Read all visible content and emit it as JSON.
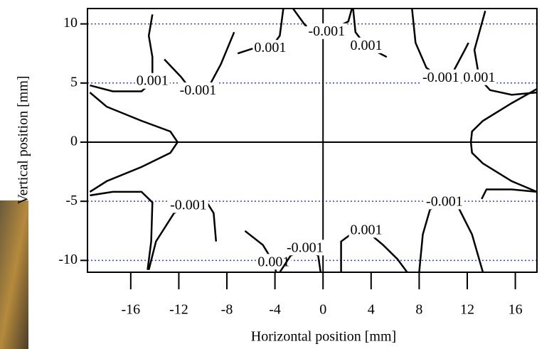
{
  "chart_data": {
    "type": "contour",
    "color": "#000000",
    "grid": true,
    "grid_color": "#3344dd",
    "xlabel": "Horizontal position [mm]",
    "ylabel": "Vertical position [mm]",
    "xlim": [
      -19.6,
      17.8
    ],
    "ylim": [
      -11,
      11.3
    ],
    "xticks": [
      -16,
      -12,
      -8,
      -4,
      0,
      4,
      8,
      12,
      16
    ],
    "yticks": [
      -10,
      -5,
      0,
      5,
      10
    ],
    "contours": [
      {
        "x": [
          -19.4,
          -18.0,
          -15.1,
          -12.7,
          -12.1,
          -12.7,
          -15.1,
          -18.0,
          -19.4
        ],
        "y": [
          4.2,
          3.0,
          1.8,
          0.9,
          0,
          -0.9,
          -2.1,
          -3.3,
          -4.2
        ]
      },
      {
        "x": [
          17.8,
          15.7,
          13.3,
          12.4,
          12.3,
          12.4,
          13.3,
          15.7,
          17.8
        ],
        "y": [
          4.5,
          3.3,
          1.8,
          0.9,
          0,
          -0.9,
          -1.8,
          -3.3,
          -4.2
        ]
      },
      {
        "label": "0.001",
        "x": [
          -19.4,
          -17.5,
          -15.1,
          -14.2,
          -14.2,
          -14.5,
          -14.2
        ],
        "y": [
          4.8,
          4.3,
          4.3,
          5.1,
          7.2,
          9.0,
          10.8
        ]
      },
      {
        "label": "-0.001",
        "x": [
          -13.2,
          -11.8,
          -11.2,
          -10.4,
          -9.5,
          -8.5,
          -7.4
        ],
        "y": [
          7.0,
          5.5,
          4.7,
          4.3,
          4.7,
          6.6,
          9.3
        ]
      },
      {
        "label": "0.001",
        "x": [
          -7.1,
          -5.9,
          -4.4,
          -3.6,
          -3.3
        ],
        "y": [
          7.5,
          7.9,
          7.9,
          9.0,
          11.3
        ]
      },
      {
        "label": "-0.001",
        "x": [
          -2.5,
          -1.5,
          0.3,
          2.1,
          2.4
        ],
        "y": [
          11.3,
          9.9,
          9.3,
          10.2,
          11.3
        ]
      },
      {
        "label": "0.001",
        "x": [
          2.5,
          2.7,
          3.6,
          5.3
        ],
        "y": [
          11.3,
          9.3,
          8.1,
          7.2
        ]
      },
      {
        "label": "-0.001",
        "x": [
          7.4,
          7.7,
          8.6,
          9.8,
          10.7,
          11.8,
          12.1
        ],
        "y": [
          11.3,
          8.4,
          6.3,
          5.4,
          5.7,
          7.8,
          8.4
        ]
      },
      {
        "label": "0.001",
        "x": [
          17.8,
          15.7,
          13.9,
          13.0,
          12.6,
          13.5
        ],
        "y": [
          4.2,
          4.0,
          4.4,
          5.4,
          7.8,
          11.1
        ]
      },
      {
        "x": [
          -19.4,
          -17.5,
          -15.1,
          -14.2,
          -14.3,
          -14.6
        ],
        "y": [
          -4.5,
          -4.2,
          -4.2,
          -5.1,
          -8.4,
          -10.8
        ]
      },
      {
        "label": "-0.001",
        "x": [
          -14.5,
          -13.9,
          -12.4,
          -11.2,
          -9.6,
          -9.1,
          -8.9
        ],
        "y": [
          -10.8,
          -8.4,
          -6.0,
          -5.4,
          -5.2,
          -6.0,
          -8.4
        ]
      },
      {
        "label": "0.001",
        "x": [
          -6.5,
          -5.0,
          -4.1,
          -3.9
        ],
        "y": [
          -7.5,
          -8.7,
          -10.2,
          -11.0
        ]
      },
      {
        "label": "-0.001",
        "x": [
          -3.6,
          -2.7,
          -1.5,
          -0.4,
          -0.2
        ],
        "y": [
          -11.0,
          -9.6,
          -9.0,
          -9.6,
          -11.0
        ]
      },
      {
        "label": "0.001",
        "x": [
          1.5,
          1.5,
          2.7,
          3.6,
          5.0,
          6.2,
          7.0
        ],
        "y": [
          -11.0,
          -8.4,
          -7.5,
          -7.5,
          -8.7,
          -9.9,
          -11.0
        ]
      },
      {
        "label": "-0.001",
        "x": [
          8.0,
          8.3,
          8.9,
          10.1,
          11.2,
          12.4,
          13.3
        ],
        "y": [
          -11.0,
          -7.8,
          -5.7,
          -5.1,
          -5.4,
          -7.8,
          -11.0
        ]
      },
      {
        "x": [
          17.8,
          15.7,
          13.6,
          13.2
        ],
        "y": [
          -4.2,
          -4.0,
          -4.0,
          -4.8
        ]
      }
    ]
  }
}
